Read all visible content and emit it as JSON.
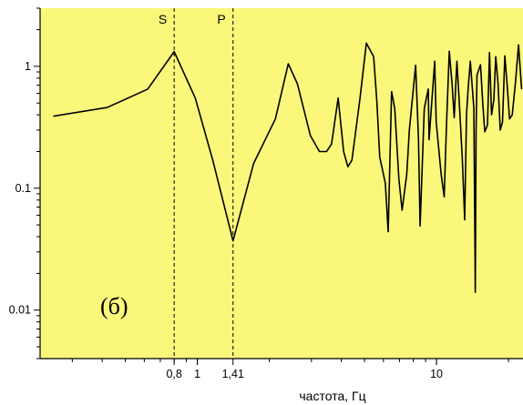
{
  "chart_data": {
    "type": "line",
    "xlabel": "частота, Гц",
    "ylabel": "",
    "x_scale": "log",
    "y_scale": "log",
    "xlim": [
      0.22,
      23
    ],
    "ylim": [
      0.004,
      3.0
    ],
    "x_ticks": [
      {
        "value": 0.8,
        "label": "0,8"
      },
      {
        "value": 1,
        "label": "1"
      },
      {
        "value": 1.41,
        "label": "1,41"
      },
      {
        "value": 10,
        "label": "10"
      }
    ],
    "y_ticks": [
      {
        "value": 1,
        "label": "1"
      },
      {
        "value": 0.1,
        "label": "0.1"
      },
      {
        "value": 0.01,
        "label": "0.01"
      }
    ],
    "markers": [
      {
        "x": 0.8,
        "label": "S"
      },
      {
        "x": 1.41,
        "label": "P"
      }
    ],
    "panel_label": "(б)",
    "background_color": "#fbf77a",
    "line_color": "#000000",
    "series": [
      {
        "x": [
          0.25,
          0.42,
          0.62,
          0.8,
          0.98,
          1.16,
          1.41,
          1.72,
          2.12,
          2.4,
          2.62,
          2.97,
          3.24,
          3.47,
          3.64,
          3.88,
          4.09,
          4.26,
          4.43,
          4.79,
          5.09,
          5.46,
          5.63,
          5.79,
          6.11,
          6.28,
          6.49,
          6.69,
          6.96,
          7.18,
          7.51,
          7.7,
          8.18,
          8.41,
          8.54,
          8.89,
          9.24,
          9.31,
          9.83,
          9.97,
          10.46,
          10.77,
          11.01,
          11.31,
          11.63,
          11.86,
          12.17,
          12.46,
          12.83,
          13.12,
          13.35,
          13.58,
          13.85,
          14.33,
          14.53,
          14.64,
          14.77,
          15.28,
          15.61,
          15.92,
          16.34,
          16.66,
          16.99,
          17.37,
          17.69,
          18.09,
          18.47,
          18.88,
          19.31,
          19.75,
          20.21,
          20.74,
          21.41,
          22.03,
          22.7
        ],
        "y": [
          0.39,
          0.46,
          0.65,
          1.32,
          0.55,
          0.17,
          0.037,
          0.16,
          0.37,
          1.05,
          0.72,
          0.27,
          0.2,
          0.2,
          0.23,
          0.55,
          0.2,
          0.15,
          0.17,
          0.55,
          1.55,
          1.2,
          0.52,
          0.18,
          0.11,
          0.044,
          0.62,
          0.45,
          0.12,
          0.066,
          0.13,
          0.3,
          1.02,
          0.25,
          0.049,
          0.45,
          0.65,
          0.25,
          1.1,
          0.35,
          0.13,
          0.085,
          0.33,
          1.33,
          0.7,
          0.38,
          1.1,
          0.5,
          0.17,
          0.055,
          0.4,
          0.68,
          1.1,
          0.45,
          0.014,
          0.3,
          0.85,
          1.03,
          0.5,
          0.29,
          0.33,
          1.3,
          0.4,
          0.53,
          1.2,
          0.72,
          0.3,
          0.35,
          1.22,
          0.7,
          0.37,
          0.4,
          0.75,
          1.5,
          0.65
        ]
      }
    ]
  }
}
